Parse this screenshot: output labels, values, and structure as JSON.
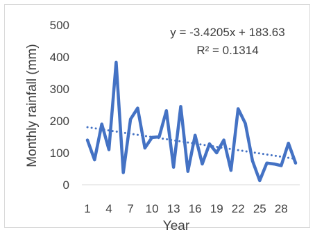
{
  "chart_data": {
    "type": "line",
    "title": "",
    "xlabel": "Year",
    "ylabel": "Monthly rainfall (mm)",
    "x": [
      1,
      2,
      3,
      4,
      5,
      6,
      7,
      8,
      9,
      10,
      11,
      12,
      13,
      14,
      15,
      16,
      17,
      18,
      19,
      20,
      21,
      22,
      23,
      24,
      25,
      26,
      27,
      28,
      29,
      30
    ],
    "series": [
      {
        "values": [
          140,
          78,
          190,
          110,
          383,
          38,
          205,
          240,
          115,
          148,
          150,
          232,
          55,
          245,
          42,
          155,
          65,
          128,
          100,
          140,
          45,
          238,
          192,
          75,
          13,
          68,
          65,
          60,
          130,
          68
        ],
        "color": "#4472c4",
        "line_style": "solid"
      }
    ],
    "trendline": {
      "type": "linear",
      "slope": -3.4205,
      "intercept": 183.63,
      "color": "#4472c4",
      "line_style": "dotted",
      "equation_label": "y = -3.4205x + 183.63",
      "r2_label": "R² = 0.1314"
    },
    "ylim": [
      0,
      500
    ],
    "yticks": [
      0,
      100,
      200,
      300,
      400,
      500
    ],
    "xlim": [
      1,
      30
    ],
    "xticks": [
      1,
      4,
      7,
      10,
      13,
      16,
      19,
      22,
      25,
      28
    ],
    "grid": false,
    "legend": false
  }
}
